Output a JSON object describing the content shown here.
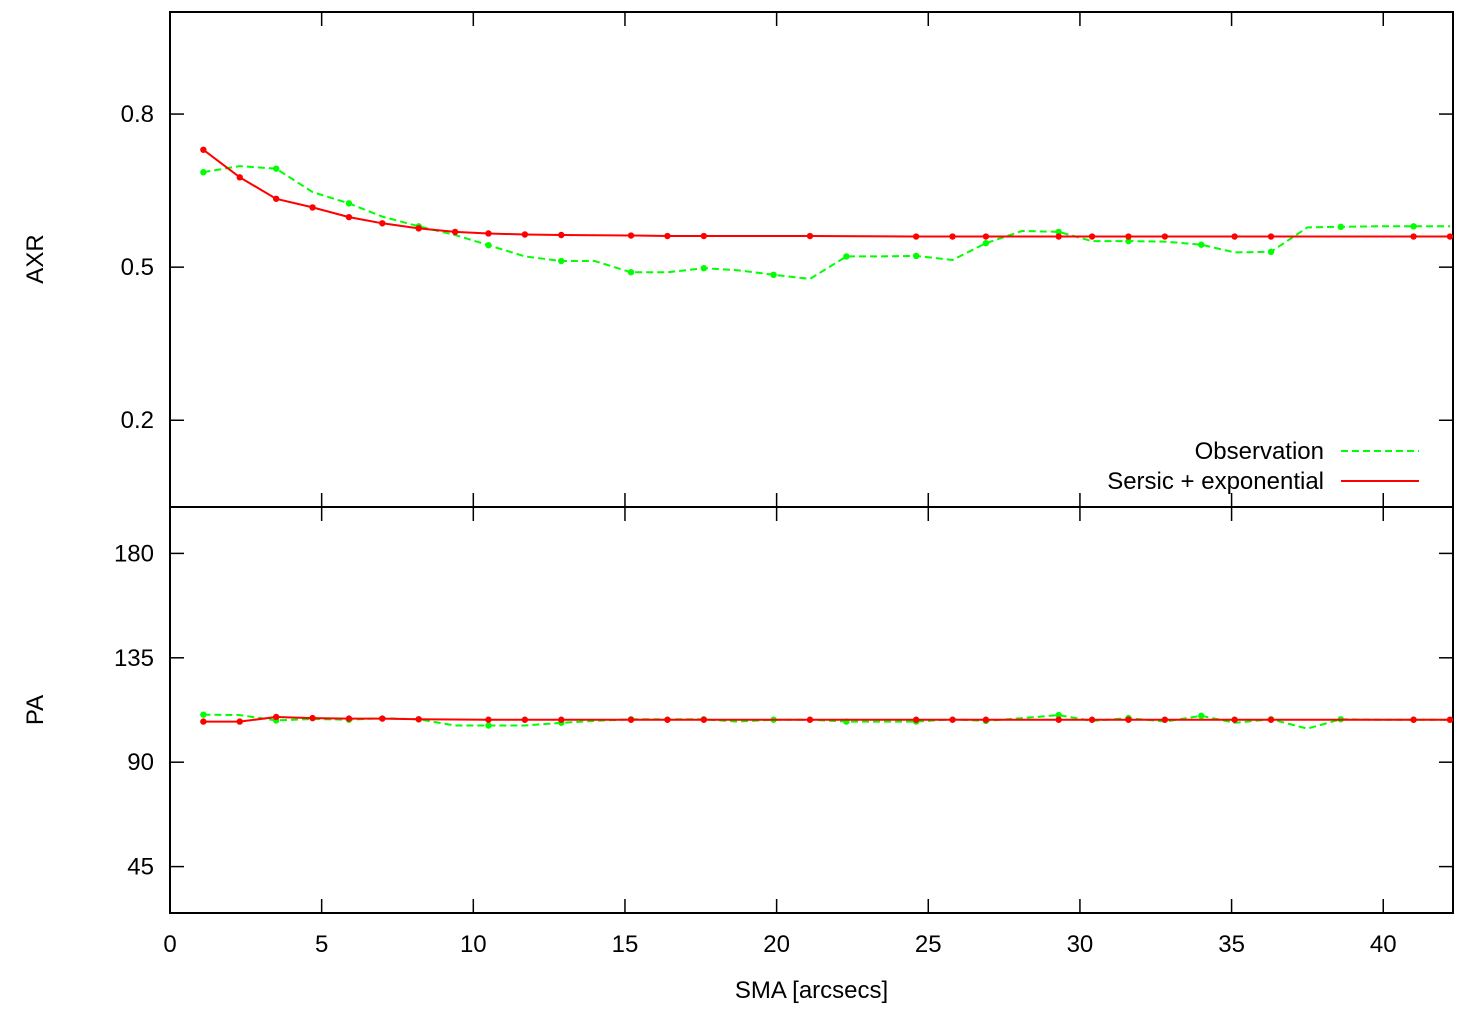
{
  "chart_data": [
    {
      "type": "line",
      "ylabel": "AXR",
      "xlim": [
        0,
        42.3
      ],
      "ylim": [
        0.03,
        1.0
      ],
      "yticks": [
        0.2,
        0.5,
        0.8
      ],
      "ytick_labels": [
        "0.2",
        "0.5",
        "0.8"
      ],
      "grid": false,
      "legend": "bottom-right",
      "series": [
        {
          "name": "Observation",
          "color": "#00ff00",
          "style": "dashed-points",
          "points": [
            [
              1.1,
              0.686
            ],
            [
              2.3,
              0.698
            ],
            [
              3.5,
              0.693
            ],
            [
              4.7,
              0.647
            ],
            [
              5.9,
              0.625
            ],
            [
              7.0,
              0.599
            ],
            [
              8.2,
              0.58
            ],
            [
              9.4,
              0.563
            ],
            [
              10.5,
              0.543
            ],
            [
              11.7,
              0.521
            ],
            [
              12.9,
              0.512
            ],
            [
              14.0,
              0.512
            ],
            [
              15.2,
              0.49
            ],
            [
              16.4,
              0.49
            ],
            [
              17.6,
              0.498
            ],
            [
              18.7,
              0.494
            ],
            [
              19.9,
              0.485
            ],
            [
              21.1,
              0.477
            ],
            [
              22.3,
              0.521
            ],
            [
              23.4,
              0.521
            ],
            [
              24.6,
              0.522
            ],
            [
              25.8,
              0.514
            ],
            [
              26.9,
              0.547
            ],
            [
              28.1,
              0.571
            ],
            [
              29.3,
              0.569
            ],
            [
              30.4,
              0.551
            ],
            [
              31.6,
              0.551
            ],
            [
              32.8,
              0.55
            ],
            [
              34.0,
              0.544
            ],
            [
              35.1,
              0.529
            ],
            [
              36.3,
              0.53
            ],
            [
              37.5,
              0.578
            ],
            [
              38.6,
              0.579
            ],
            [
              39.8,
              0.58
            ],
            [
              41.0,
              0.58
            ],
            [
              42.2,
              0.58
            ]
          ]
        },
        {
          "name": "Sersic + exponential",
          "color": "#ff0000",
          "style": "solid-points",
          "points": [
            [
              1.1,
              0.73
            ],
            [
              2.3,
              0.676
            ],
            [
              3.5,
              0.634
            ],
            [
              4.7,
              0.617
            ],
            [
              5.9,
              0.598
            ],
            [
              7.0,
              0.586
            ],
            [
              8.2,
              0.576
            ],
            [
              9.4,
              0.569
            ],
            [
              10.5,
              0.566
            ],
            [
              11.7,
              0.564
            ],
            [
              12.9,
              0.563
            ],
            [
              15.2,
              0.562
            ],
            [
              16.4,
              0.561
            ],
            [
              17.6,
              0.561
            ],
            [
              21.1,
              0.561
            ],
            [
              24.6,
              0.56
            ],
            [
              25.8,
              0.56
            ],
            [
              26.9,
              0.56
            ],
            [
              29.3,
              0.56
            ],
            [
              30.4,
              0.56
            ],
            [
              31.6,
              0.56
            ],
            [
              32.8,
              0.56
            ],
            [
              35.1,
              0.56
            ],
            [
              36.3,
              0.56
            ],
            [
              41.0,
              0.56
            ],
            [
              42.2,
              0.56
            ]
          ]
        }
      ]
    },
    {
      "type": "line",
      "ylabel": "PA",
      "xlabel": "SMA [arcsecs]",
      "xlim": [
        0,
        42.3
      ],
      "ylim": [
        25,
        200
      ],
      "yticks": [
        45,
        90,
        135,
        180
      ],
      "ytick_labels": [
        "45",
        "90",
        "135",
        "180"
      ],
      "xticks": [
        0,
        5,
        10,
        15,
        20,
        25,
        30,
        35,
        40
      ],
      "xtick_labels": [
        "0",
        "5",
        "10",
        "15",
        "20",
        "25",
        "30",
        "35",
        "40"
      ],
      "grid": false,
      "series": [
        {
          "name": "Observation",
          "color": "#00ff00",
          "style": "dashed-points",
          "points": [
            [
              1.1,
              110.5
            ],
            [
              2.3,
              110.3
            ],
            [
              3.5,
              108.0
            ],
            [
              4.7,
              108.6
            ],
            [
              5.9,
              108.3
            ],
            [
              7.0,
              109.0
            ],
            [
              8.2,
              108.5
            ],
            [
              9.4,
              105.8
            ],
            [
              10.5,
              105.8
            ],
            [
              11.7,
              105.8
            ],
            [
              12.9,
              107.0
            ],
            [
              14.0,
              107.8
            ],
            [
              15.2,
              108.5
            ],
            [
              16.4,
              108.5
            ],
            [
              17.6,
              108.5
            ],
            [
              18.7,
              107.5
            ],
            [
              19.9,
              108.3
            ],
            [
              21.1,
              108.3
            ],
            [
              22.3,
              107.5
            ],
            [
              23.4,
              107.5
            ],
            [
              24.6,
              107.5
            ],
            [
              25.8,
              108.5
            ],
            [
              26.9,
              107.8
            ],
            [
              28.1,
              109.0
            ],
            [
              29.3,
              110.3
            ],
            [
              30.4,
              107.8
            ],
            [
              31.6,
              109.0
            ],
            [
              32.8,
              107.5
            ],
            [
              34.0,
              110.0
            ],
            [
              35.1,
              107.0
            ],
            [
              36.3,
              108.5
            ],
            [
              37.5,
              104.5
            ],
            [
              38.6,
              108.5
            ],
            [
              39.8,
              108.3
            ],
            [
              41.0,
              108.3
            ],
            [
              42.2,
              108.3
            ]
          ]
        },
        {
          "name": "Sersic + exponential",
          "color": "#ff0000",
          "style": "solid-points",
          "points": [
            [
              1.1,
              107.5
            ],
            [
              2.3,
              107.5
            ],
            [
              3.5,
              109.5
            ],
            [
              4.7,
              109.0
            ],
            [
              5.9,
              108.8
            ],
            [
              7.0,
              108.8
            ],
            [
              8.2,
              108.5
            ],
            [
              10.5,
              108.3
            ],
            [
              11.7,
              108.3
            ],
            [
              12.9,
              108.3
            ],
            [
              15.2,
              108.3
            ],
            [
              16.4,
              108.3
            ],
            [
              17.6,
              108.3
            ],
            [
              21.1,
              108.3
            ],
            [
              24.6,
              108.3
            ],
            [
              25.8,
              108.3
            ],
            [
              26.9,
              108.3
            ],
            [
              29.3,
              108.3
            ],
            [
              30.4,
              108.3
            ],
            [
              31.6,
              108.3
            ],
            [
              32.8,
              108.3
            ],
            [
              35.1,
              108.3
            ],
            [
              36.3,
              108.3
            ],
            [
              41.0,
              108.3
            ],
            [
              42.2,
              108.3
            ]
          ]
        }
      ]
    }
  ]
}
